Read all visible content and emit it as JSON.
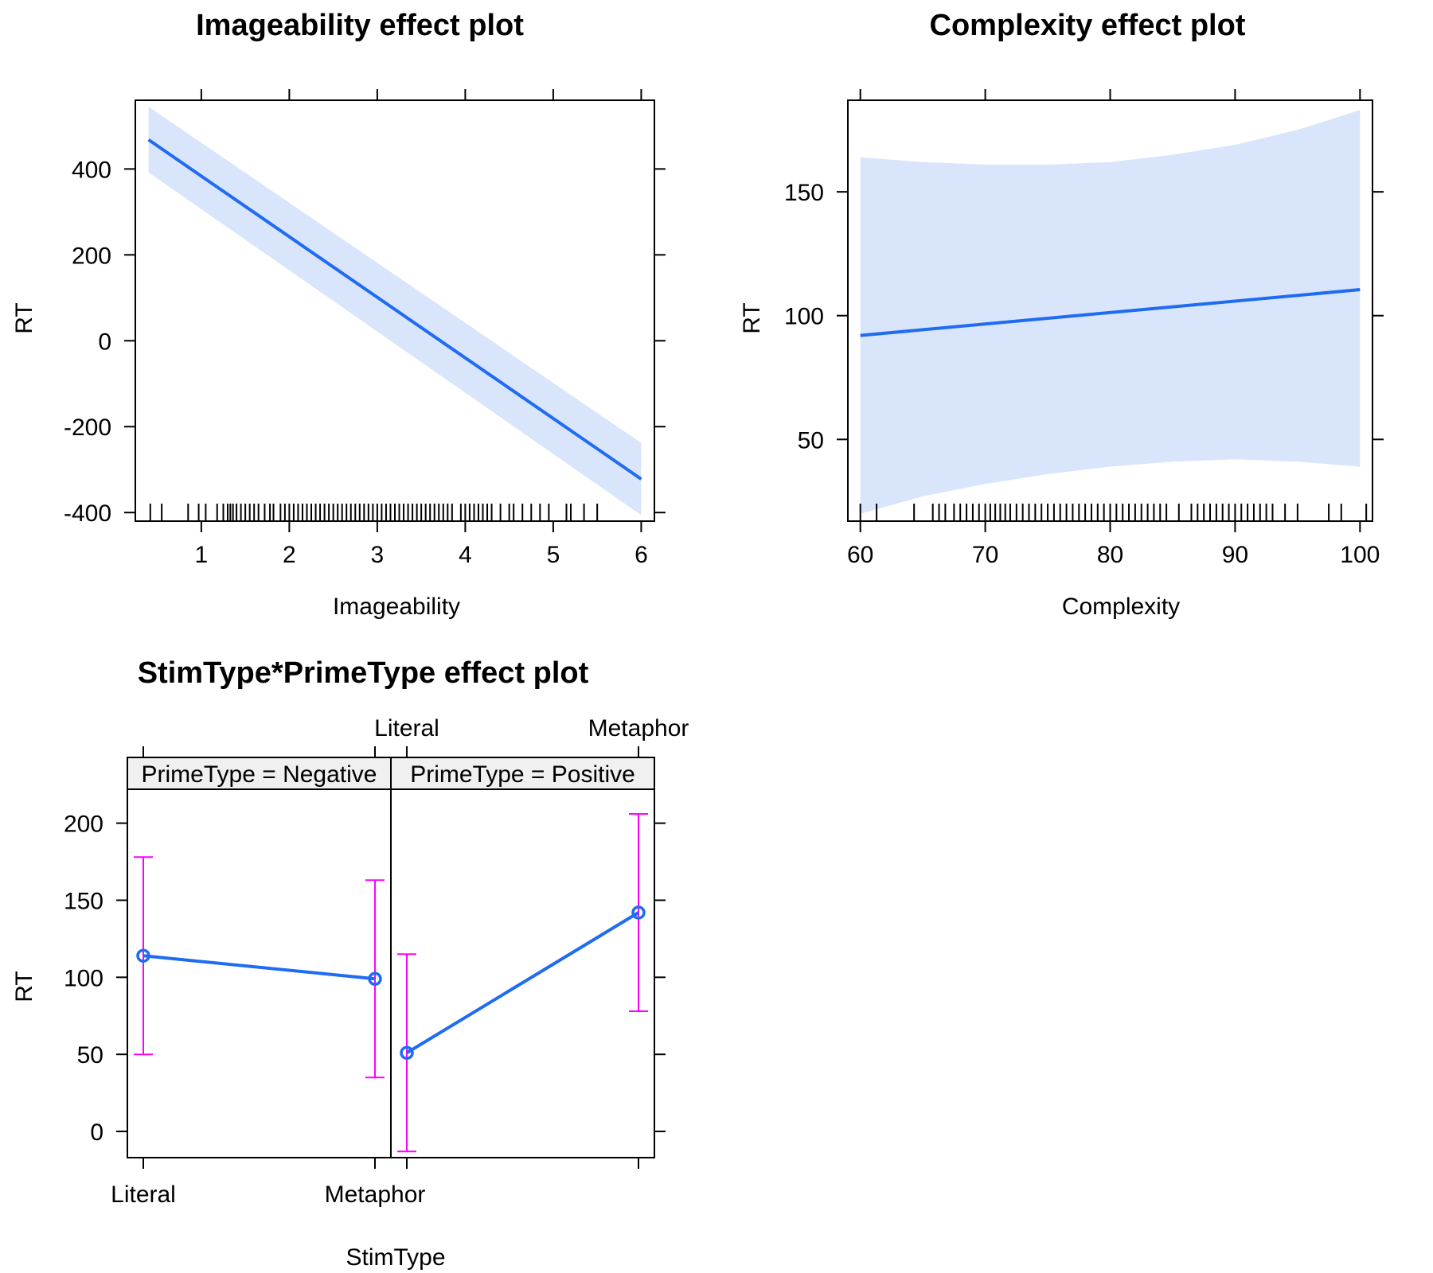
{
  "colors": {
    "line": "#1f6cf2",
    "band": "#d9e5fb",
    "errorbar": "#ff00ff",
    "strip_bg": "#f0f0f0",
    "axis": "#000000"
  },
  "chart_data": [
    {
      "id": "imageability",
      "type": "line",
      "title": "Imageability effect plot",
      "xlabel": "Imageability",
      "ylabel": "RT",
      "xlim": [
        0.25,
        6.15
      ],
      "ylim": [
        -420,
        560
      ],
      "xticks": [
        1,
        2,
        3,
        4,
        5,
        6
      ],
      "yticks": [
        -400,
        -200,
        0,
        200,
        400
      ],
      "fit": {
        "x": [
          0.4,
          6.0
        ],
        "y": [
          468,
          -322
        ]
      },
      "band": {
        "x": [
          0.4,
          6.0
        ],
        "upper": [
          545,
          -238
        ],
        "lower": [
          392,
          -406
        ]
      },
      "rug": [
        0.42,
        0.55,
        0.85,
        0.97,
        1.05,
        1.18,
        1.25,
        1.3,
        1.33,
        1.36,
        1.4,
        1.45,
        1.5,
        1.55,
        1.6,
        1.65,
        1.72,
        1.78,
        1.82,
        1.9,
        1.95,
        2.0,
        2.05,
        2.1,
        2.15,
        2.2,
        2.25,
        2.3,
        2.35,
        2.4,
        2.45,
        2.5,
        2.55,
        2.6,
        2.65,
        2.7,
        2.75,
        2.8,
        2.85,
        2.9,
        2.95,
        3.0,
        3.05,
        3.1,
        3.15,
        3.2,
        3.25,
        3.3,
        3.35,
        3.4,
        3.45,
        3.5,
        3.55,
        3.6,
        3.65,
        3.7,
        3.75,
        3.8,
        3.85,
        3.95,
        4.0,
        4.05,
        4.1,
        4.15,
        4.2,
        4.25,
        4.3,
        4.4,
        4.5,
        4.55,
        4.65,
        4.75,
        4.85,
        4.95,
        5.15,
        5.2,
        5.35,
        5.5
      ]
    },
    {
      "id": "complexity",
      "type": "line",
      "title": "Complexity effect plot",
      "xlabel": "Complexity",
      "ylabel": "RT",
      "xlim": [
        59,
        101
      ],
      "ylim": [
        17,
        187
      ],
      "xticks": [
        60,
        70,
        80,
        90,
        100
      ],
      "yticks": [
        50,
        100,
        150
      ],
      "fit": {
        "x": [
          60,
          100
        ],
        "y": [
          92,
          110.5
        ]
      },
      "band": {
        "x": [
          60,
          65,
          70,
          75,
          80,
          85,
          90,
          95,
          100
        ],
        "upper": [
          164,
          162,
          161,
          161,
          162,
          165,
          169,
          175,
          183
        ],
        "lower": [
          20,
          27,
          32,
          36,
          39,
          41,
          42,
          41,
          39
        ]
      },
      "rug": [
        60,
        61.3,
        64.3,
        65.8,
        66.3,
        66.8,
        67.5,
        68,
        68.5,
        69,
        69.5,
        70,
        70.4,
        70.8,
        71.2,
        71.6,
        72,
        72.5,
        73,
        73.5,
        74,
        74.5,
        75,
        75.5,
        76,
        76.5,
        77,
        77.5,
        78,
        78.5,
        79,
        79.5,
        80,
        80.5,
        81,
        81.5,
        82,
        82.5,
        83,
        83.5,
        84,
        84.5,
        85.5,
        86.5,
        87,
        87.5,
        88,
        88.5,
        89,
        89.5,
        90,
        90.5,
        91,
        91.5,
        92,
        92.5,
        93,
        94,
        95,
        97.5,
        98.5,
        100.5
      ]
    },
    {
      "id": "stimtype_primetype",
      "type": "line",
      "title": "StimType*PrimeType effect plot",
      "xlabel": "StimType",
      "ylabel": "RT",
      "categories": [
        "Literal",
        "Metaphor"
      ],
      "ylim": [
        -17,
        222
      ],
      "yticks": [
        0,
        50,
        100,
        150,
        200
      ],
      "panels": [
        {
          "strip": "PrimeType = Negative",
          "values": [
            114,
            99
          ],
          "lower": [
            50,
            35
          ],
          "upper": [
            178,
            163
          ]
        },
        {
          "strip": "PrimeType = Positive",
          "values": [
            51,
            142
          ],
          "lower": [
            -13,
            78
          ],
          "upper": [
            115,
            206
          ]
        }
      ]
    }
  ]
}
